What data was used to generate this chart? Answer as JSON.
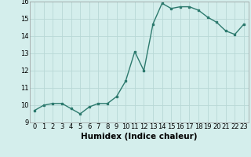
{
  "x": [
    0,
    1,
    2,
    3,
    4,
    5,
    6,
    7,
    8,
    9,
    10,
    11,
    12,
    13,
    14,
    15,
    16,
    17,
    18,
    19,
    20,
    21,
    22,
    23
  ],
  "y": [
    9.7,
    10.0,
    10.1,
    10.1,
    9.8,
    9.5,
    9.9,
    10.1,
    10.1,
    10.5,
    11.4,
    13.1,
    12.0,
    14.7,
    15.9,
    15.6,
    15.7,
    15.7,
    15.5,
    15.1,
    14.8,
    14.3,
    14.1,
    14.7
  ],
  "xlabel": "Humidex (Indice chaleur)",
  "ylim": [
    9,
    16
  ],
  "xlim_min": -0.5,
  "xlim_max": 23.5,
  "yticks": [
    9,
    10,
    11,
    12,
    13,
    14,
    15,
    16
  ],
  "xticks": [
    0,
    1,
    2,
    3,
    4,
    5,
    6,
    7,
    8,
    9,
    10,
    11,
    12,
    13,
    14,
    15,
    16,
    17,
    18,
    19,
    20,
    21,
    22,
    23
  ],
  "line_color": "#2d7a6e",
  "marker": "s",
  "marker_size": 2.0,
  "line_width": 1.0,
  "bg_color": "#d4eeec",
  "grid_color": "#b8d8d6",
  "tick_fontsize": 6.0,
  "xlabel_fontsize": 7.5,
  "xlabel_fontweight": "bold"
}
